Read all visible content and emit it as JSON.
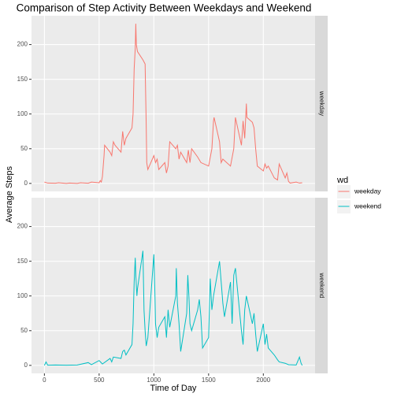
{
  "chart_data": {
    "type": "line",
    "title": "Comparison of Step Activity Between Weekdays and Weekend",
    "x_label": "Time of Day",
    "y_label": "Average Steps",
    "legend_title": "wd",
    "xlim": [
      -117.75,
      2472.75
    ],
    "ylim": [
      -11.5,
      241.5
    ],
    "xticks": [
      0,
      500,
      1000,
      1500,
      2000
    ],
    "yticks": [
      0,
      50,
      100,
      150,
      200
    ],
    "grid": true,
    "legend": "right",
    "series": [
      {
        "name": "weekday",
        "color": "#F8766D",
        "x": [
          0,
          30,
          100,
          130,
          200,
          230,
          300,
          330,
          400,
          430,
          500,
          510,
          520,
          530,
          545,
          550,
          600,
          615,
          630,
          645,
          700,
          715,
          730,
          745,
          800,
          810,
          820,
          830,
          835,
          840,
          850,
          900,
          910,
          920,
          930,
          935,
          945,
          1000,
          1015,
          1030,
          1045,
          1100,
          1115,
          1130,
          1145,
          1200,
          1215,
          1230,
          1245,
          1300,
          1315,
          1330,
          1345,
          1400,
          1430,
          1500,
          1530,
          1545,
          1550,
          1600,
          1615,
          1630,
          1700,
          1730,
          1745,
          1800,
          1815,
          1830,
          1845,
          1850,
          1900,
          1915,
          1930,
          1945,
          2000,
          2015,
          2030,
          2045,
          2100,
          2130,
          2145,
          2200,
          2215,
          2230,
          2245,
          2300,
          2330,
          2355
        ],
        "values": [
          2,
          0.5,
          0.3,
          1,
          0,
          0.5,
          0,
          1,
          0.3,
          2,
          1,
          4,
          2,
          10,
          40,
          55,
          45,
          40,
          60,
          55,
          45,
          75,
          55,
          65,
          80,
          100,
          165,
          195,
          230,
          200,
          190,
          178,
          175,
          172,
          85,
          30,
          20,
          40,
          30,
          35,
          20,
          30,
          15,
          25,
          60,
          50,
          55,
          35,
          45,
          30,
          48,
          30,
          50,
          38,
          30,
          25,
          50,
          90,
          95,
          60,
          30,
          35,
          25,
          50,
          95,
          55,
          90,
          65,
          115,
          95,
          88,
          80,
          50,
          25,
          18,
          28,
          22,
          25,
          8,
          5,
          28,
          8,
          15,
          3,
          0.5,
          2,
          0.5,
          1
        ]
      },
      {
        "name": "weekend",
        "color": "#00BFC4",
        "x": [
          0,
          15,
          30,
          100,
          200,
          300,
          400,
          430,
          500,
          530,
          600,
          615,
          630,
          700,
          715,
          730,
          745,
          800,
          810,
          820,
          830,
          835,
          845,
          850,
          900,
          910,
          920,
          930,
          945,
          1000,
          1010,
          1015,
          1030,
          1045,
          1100,
          1115,
          1130,
          1145,
          1200,
          1205,
          1215,
          1230,
          1245,
          1300,
          1310,
          1320,
          1330,
          1345,
          1400,
          1415,
          1430,
          1445,
          1500,
          1515,
          1530,
          1545,
          1600,
          1615,
          1630,
          1645,
          1700,
          1715,
          1730,
          1745,
          1800,
          1815,
          1830,
          1845,
          1900,
          1915,
          1930,
          1945,
          2000,
          2015,
          2030,
          2045,
          2100,
          2130,
          2145,
          2200,
          2230,
          2300,
          2330,
          2345,
          2355
        ],
        "values": [
          0,
          5,
          0.3,
          0.5,
          0.3,
          0.5,
          4,
          1,
          7,
          2,
          10,
          5,
          12,
          10,
          20,
          22,
          15,
          30,
          60,
          120,
          155,
          130,
          100,
          110,
          165,
          80,
          50,
          28,
          40,
          160,
          100,
          60,
          40,
          55,
          70,
          40,
          80,
          55,
          100,
          140,
          90,
          60,
          20,
          75,
          130,
          100,
          60,
          50,
          80,
          95,
          70,
          25,
          40,
          125,
          80,
          100,
          150,
          120,
          90,
          70,
          120,
          60,
          130,
          140,
          50,
          30,
          80,
          100,
          60,
          75,
          45,
          20,
          60,
          30,
          45,
          25,
          15,
          8,
          5,
          3,
          1,
          0.5,
          12,
          3,
          0
        ]
      }
    ]
  }
}
